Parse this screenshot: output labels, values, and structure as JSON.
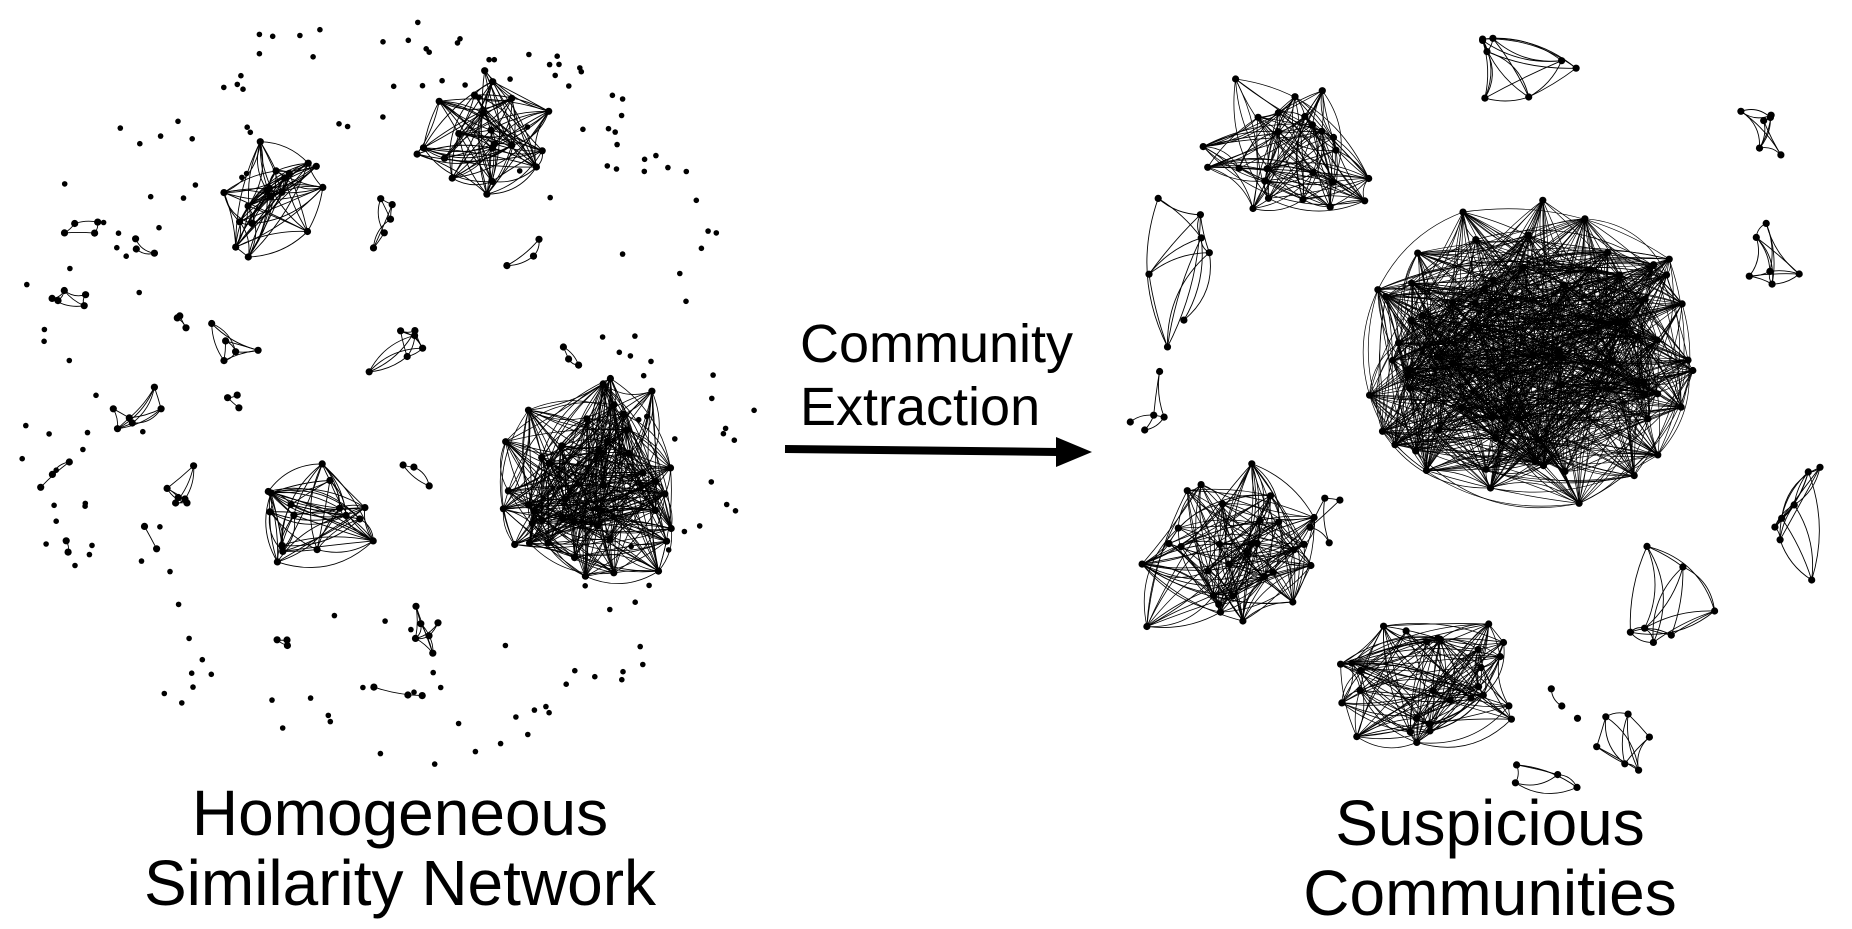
{
  "left_network": {
    "title_line1": "Homogeneous",
    "title_line2": "Similarity Network"
  },
  "arrow": {
    "label_line1": "Community",
    "label_line2": "Extraction"
  },
  "right_network": {
    "title_line1": "Suspicious",
    "title_line2": "Communities"
  },
  "colors": {
    "ink": "#000000",
    "background": "#ffffff"
  }
}
